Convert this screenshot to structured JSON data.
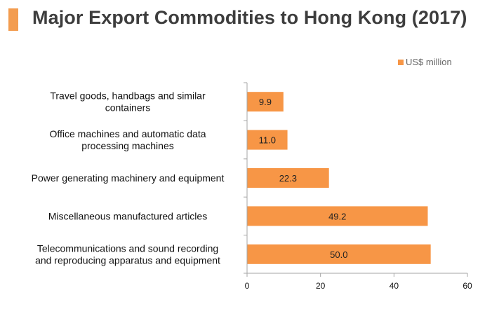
{
  "header": {
    "title": "Major Export Commodities to Hong Kong (2017)"
  },
  "colors": {
    "accent": "#F39C4F",
    "bar": "#F79646",
    "axis": "#A6A6A6"
  },
  "chart_data": {
    "type": "bar",
    "orientation": "horizontal",
    "title": "Major Export Commodities to Hong Kong (2017)",
    "xlabel": "",
    "ylabel": "",
    "xlim": [
      0,
      60
    ],
    "xticks": [
      0,
      20,
      40,
      60
    ],
    "xtick_labels": [
      "0",
      "20",
      "40",
      "60"
    ],
    "grid": false,
    "legend_position": "top-right",
    "categories": [
      [
        "Travel goods, handbags and similar",
        "containers"
      ],
      [
        "Office machines and automatic data",
        "processing machines"
      ],
      [
        "Power generating machinery and equipment"
      ],
      [
        "Miscellaneous manufactured articles"
      ],
      [
        "Telecommunications and sound recording",
        "and reproducing apparatus and equipment"
      ]
    ],
    "series": [
      {
        "name": "US$ million",
        "values": [
          9.9,
          11.0,
          22.3,
          49.2,
          50.0
        ],
        "value_labels": [
          "9.9",
          "11.0",
          "22.3",
          "49.2",
          "50.0"
        ]
      }
    ]
  }
}
